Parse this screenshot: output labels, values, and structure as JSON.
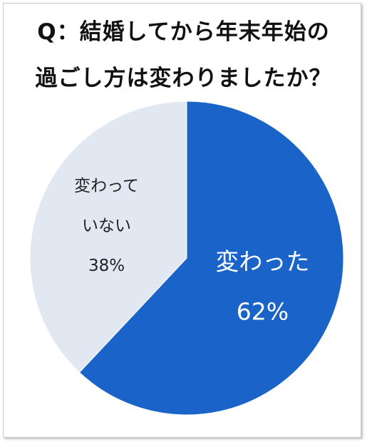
{
  "title": {
    "line1": "Q：結婚してから年末年始の",
    "line2": "過ごし方は変わりましたか？"
  },
  "chart_data": {
    "type": "pie",
    "title": "Q：結婚してから年末年始の過ごし方は変わりましたか？",
    "slices": [
      {
        "label_lines": [
          "変わった"
        ],
        "value_label": "62%",
        "value": 62,
        "color": "#1a63c8",
        "text_color": "#ffffff"
      },
      {
        "label_lines": [
          "変わって",
          "いない"
        ],
        "value_label": "38%",
        "value": 38,
        "color": "#e2e8f2",
        "text_color": "#222222"
      }
    ],
    "start_angle_deg": 0,
    "direction": "clockwise",
    "legend": "none"
  }
}
